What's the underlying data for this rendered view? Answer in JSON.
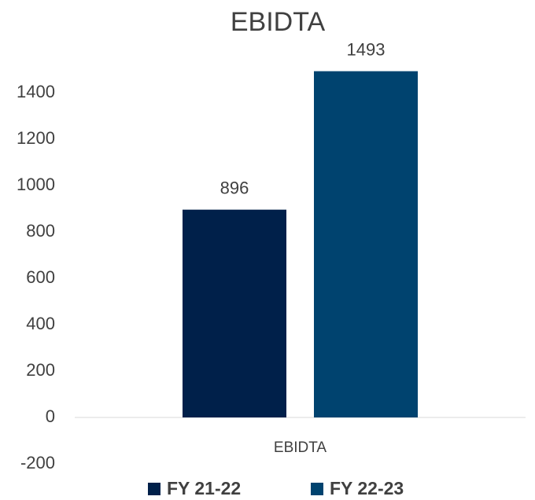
{
  "chart_data": {
    "type": "bar",
    "title": "EBIDTA",
    "categories": [
      "EBIDTA"
    ],
    "series": [
      {
        "name": "FY 21-22",
        "color": "#00204a",
        "values": [
          896
        ]
      },
      {
        "name": "FY 22-23",
        "color": "#00436f",
        "values": [
          1493
        ]
      }
    ],
    "ylim": [
      -200,
      1500
    ],
    "yticks": [
      -200,
      0,
      200,
      400,
      600,
      800,
      1000,
      1200,
      1400
    ],
    "grid": false,
    "legend": "bottom"
  }
}
